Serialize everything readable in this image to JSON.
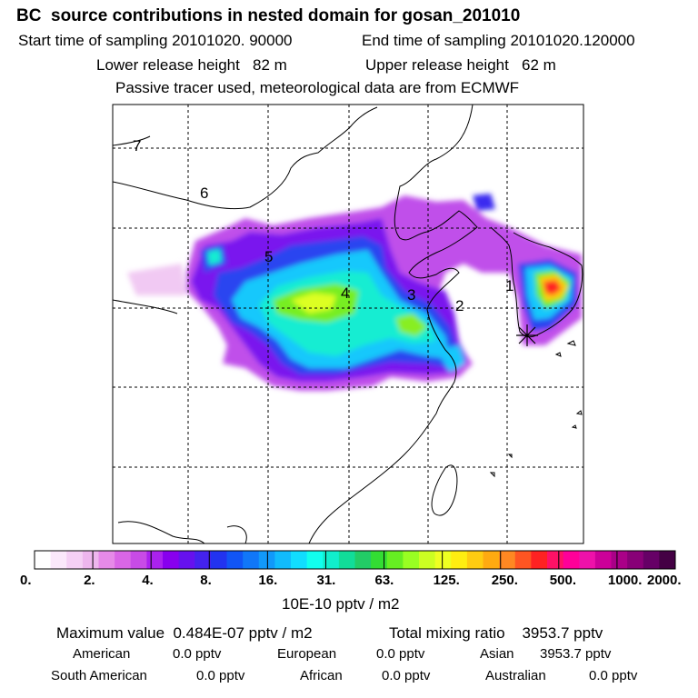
{
  "header": {
    "title": "BC  source contributions in nested domain for gosan_201010",
    "start_label": "Start time of sampling 20101020. 90000",
    "end_label": "End time of sampling 20101020.120000",
    "lower_label": "Lower release height   82 m",
    "upper_label": "Upper release height   62 m",
    "note": "Passive tracer used, meteorological data are from ECMWF"
  },
  "chart_data": {
    "type": "heatmap",
    "title": "BC  source contributions in nested domain for gosan_201010",
    "region_labels": [
      "1",
      "2",
      "3",
      "4",
      "5",
      "6",
      "7"
    ],
    "receptor_marker": "asterisk",
    "colorbar": {
      "tick_labels": [
        "0.",
        "2.",
        "4.",
        "8.",
        "16.",
        "31.",
        "63.",
        "125.",
        "250.",
        "500.",
        "1000.",
        "2000."
      ],
      "unit": "10E-10 pptv / m2",
      "colors": [
        "#ffffff",
        "#fbe8fb",
        "#f5d0f5",
        "#eeb6ee",
        "#e68ae8",
        "#d966e6",
        "#c84be6",
        "#aa22ee",
        "#8800ee",
        "#6611ee",
        "#4422ee",
        "#2233f0",
        "#1155f5",
        "#1177f8",
        "#1199fa",
        "#11bbfc",
        "#11ddff",
        "#11ffee",
        "#11eecc",
        "#11dd99",
        "#22cc66",
        "#33dd33",
        "#66ee22",
        "#99ff22",
        "#ccff22",
        "#eeff22",
        "#ffee11",
        "#ffcc11",
        "#ffaa11",
        "#ff8822",
        "#ff5522",
        "#ff2222",
        "#ff1166",
        "#ff0099",
        "#ee11aa",
        "#cc0099",
        "#aa0088",
        "#880077",
        "#660066",
        "#440044"
      ]
    }
  },
  "footer": {
    "max_value": "Maximum value  0.484E-07 pptv / m2",
    "total_mixing": "Total mixing ratio    3953.7 pptv",
    "american_label": "American",
    "american_value": "0.0 pptv",
    "european_label": "European",
    "european_value": "0.0 pptv",
    "asian_label": "Asian",
    "asian_value": "3953.7 pptv",
    "south_american_label": "South American",
    "south_american_value": "0.0 pptv",
    "african_label": "African",
    "african_value": "0.0 pptv",
    "australian_label": "Australian",
    "australian_value": "0.0 pptv"
  }
}
